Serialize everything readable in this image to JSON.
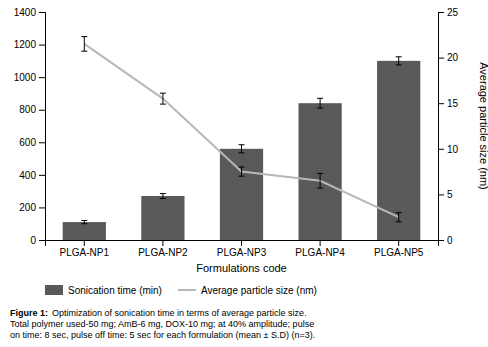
{
  "chart_data": {
    "type": "bar",
    "categories": [
      "PLGA-NP1",
      "PLGA-NP2",
      "PLGA-NP3",
      "PLGA-NP4",
      "PLGA-NP5"
    ],
    "series": [
      {
        "name": "Sonication time (min)",
        "type": "bar",
        "color": "#595959",
        "values": [
          110,
          270,
          560,
          840,
          1100
        ],
        "errors": [
          10,
          15,
          25,
          30,
          25
        ]
      },
      {
        "name": "Average particle size (nm)",
        "type": "line",
        "axis": "y2",
        "color": "#b8b8b8",
        "values": [
          21.5,
          15.5,
          7.5,
          6.5,
          2.5
        ],
        "errors": [
          0.8,
          0.6,
          0.5,
          0.8,
          0.5
        ]
      }
    ],
    "xlabel": "Formulations code",
    "y2label": "Average particle size (nm)",
    "ylim": [
      0,
      1400
    ],
    "yticks": [
      0,
      200,
      400,
      600,
      800,
      1000,
      1200,
      1400
    ],
    "y2lim": [
      0,
      25
    ],
    "y2ticks": [
      0,
      5,
      10,
      15,
      20,
      25
    ],
    "grid": false,
    "legend": "bottom",
    "annotations": [
      "Figure 1:",
      "Optimization of sonication time in terms of average particle size.\nTotal polymer used-50 mg; AmB-6 mg, DOX-10 mg; at 40% amplitude; pulse\non time: 8 sec, pulse off time: 5 sec for each formulation (mean ± S.D) (n=3)."
    ]
  }
}
